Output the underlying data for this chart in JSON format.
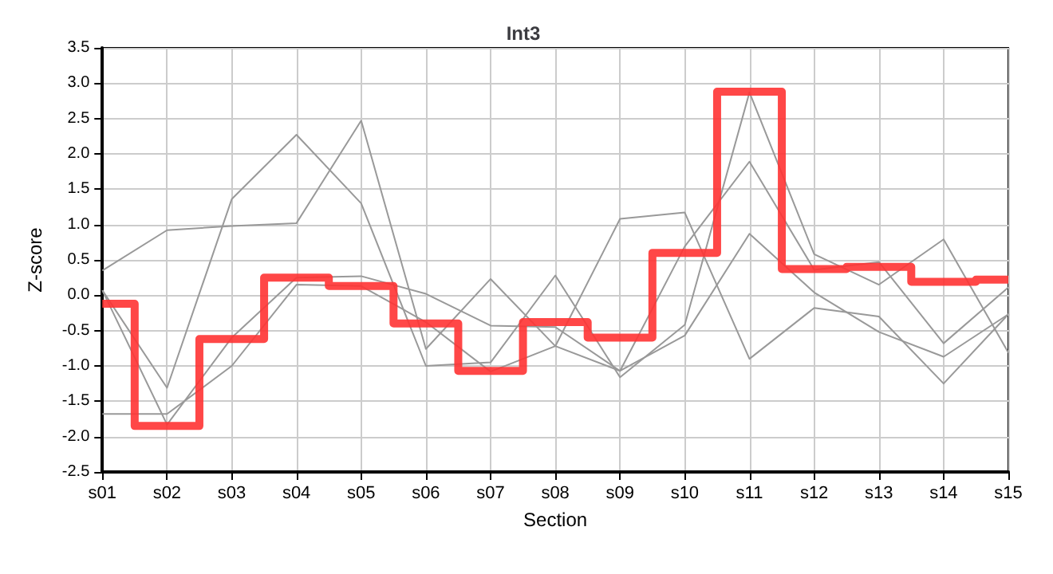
{
  "chart_data": {
    "type": "line",
    "title": "Int3",
    "xlabel": "Section",
    "ylabel": "Z-score",
    "categories": [
      "s01",
      "s02",
      "s03",
      "s04",
      "s05",
      "s06",
      "s07",
      "s08",
      "s09",
      "s10",
      "s11",
      "s12",
      "s13",
      "s14",
      "s15"
    ],
    "ylim": [
      -2.5,
      3.5
    ],
    "yticks": [
      -2.5,
      {
        "value": -2,
        "label": "-2.0"
      },
      -1.5,
      {
        "value": -1,
        "label": "-1.0"
      },
      -0.5,
      {
        "value": 0,
        "label": "0.0"
      },
      0.5,
      {
        "value": 1,
        "label": "1.0"
      },
      1.5,
      {
        "value": 2,
        "label": "2.0"
      },
      2.5,
      {
        "value": 3,
        "label": "3.0"
      },
      3.5
    ],
    "grid": true,
    "marker": "none",
    "series": [
      {
        "color": "#999999",
        "values": [
          0.35,
          0.92,
          0.98,
          1.02,
          2.47,
          -0.76,
          0.23,
          -0.72,
          -1.07,
          -0.57,
          0.87,
          0.04,
          -0.52,
          -0.87,
          -0.27
        ]
      },
      {
        "color": "#999999",
        "values": [
          0.07,
          -1.31,
          1.36,
          2.27,
          1.3,
          -1.0,
          -0.95,
          0.28,
          -1.16,
          -0.42,
          2.87,
          0.58,
          0.15,
          0.79,
          -0.81
        ]
      },
      {
        "color": "#999999",
        "values": [
          0.07,
          -1.83,
          -0.6,
          0.25,
          0.27,
          0.02,
          -0.43,
          -0.45,
          -1.07,
          0.69,
          1.89,
          0.36,
          0.47,
          -0.68,
          0.11
        ]
      },
      {
        "color": "#999999",
        "values": [
          -1.68,
          -1.68,
          -1.0,
          0.15,
          0.13,
          -0.38,
          -1.08,
          -0.72,
          1.08,
          1.17,
          -0.9,
          -0.18,
          -0.3,
          -1.25,
          -0.27
        ]
      },
      {
        "type": "step",
        "color": "#ff3333",
        "values": [
          -0.12,
          -1.85,
          -0.62,
          0.25,
          0.13,
          -0.4,
          -1.07,
          -0.38,
          -0.6,
          0.6,
          2.88,
          0.37,
          0.4,
          0.19,
          0.22
        ]
      }
    ]
  }
}
